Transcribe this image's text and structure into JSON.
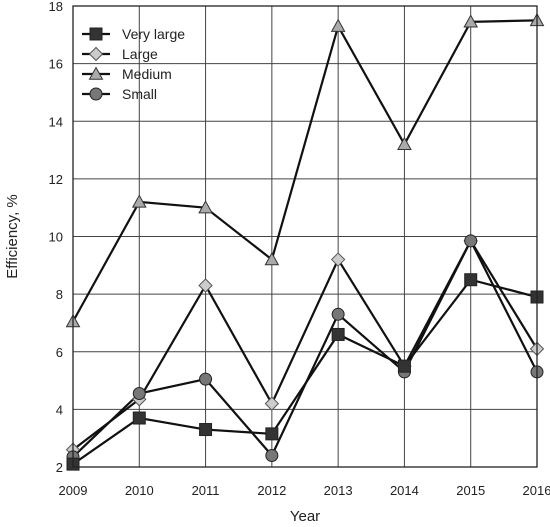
{
  "chart_data": {
    "type": "line",
    "title": "",
    "xlabel": "Year",
    "ylabel": "Efficiency, %",
    "x": [
      "2009",
      "2010",
      "2011",
      "2012",
      "2013",
      "2014",
      "2015",
      "2016"
    ],
    "ylim": [
      2,
      18
    ],
    "yticks": [
      "2",
      "4",
      "6",
      "8",
      "10",
      "12",
      "14",
      "16",
      "18"
    ],
    "grid": true,
    "legend_position": "top-left",
    "series": [
      {
        "name": "Very large",
        "marker": "square",
        "color": "#333333",
        "values": [
          2.1,
          3.7,
          3.3,
          3.15,
          6.6,
          5.5,
          8.5,
          7.9
        ]
      },
      {
        "name": "Large",
        "marker": "diamond",
        "color": "#cccccc",
        "values": [
          2.6,
          4.35,
          8.3,
          4.2,
          9.2,
          5.5,
          9.85,
          6.1
        ]
      },
      {
        "name": "Medium",
        "marker": "triangle",
        "color": "#aaaaaa",
        "values": [
          7.05,
          11.2,
          11.0,
          9.2,
          17.3,
          13.2,
          17.45,
          17.5
        ]
      },
      {
        "name": "Small",
        "marker": "circle",
        "color": "#777777",
        "values": [
          2.35,
          4.55,
          5.05,
          2.4,
          7.3,
          5.3,
          9.85,
          5.3
        ]
      }
    ]
  }
}
